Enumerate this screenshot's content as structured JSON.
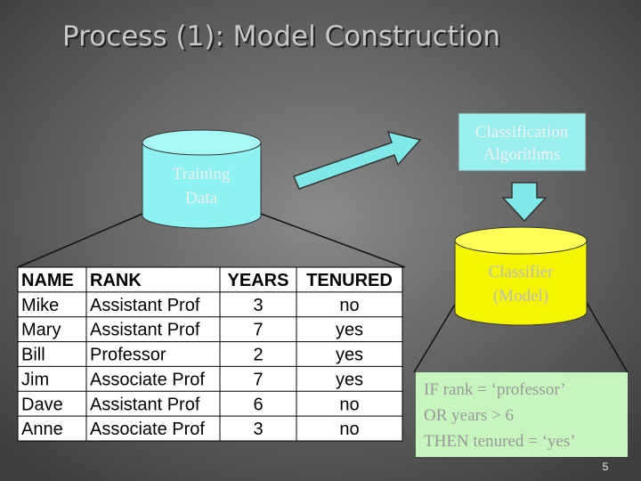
{
  "title": "Process (1): Model Construction",
  "training_data": {
    "lines": [
      "Training",
      "Data"
    ]
  },
  "algorithms": {
    "lines": [
      "Classification",
      "Algorithms"
    ]
  },
  "classifier": {
    "lines": [
      "Classifier",
      "(Model)"
    ]
  },
  "rule": {
    "lines": [
      "IF rank = ‘professor’",
      "OR years > 6",
      "THEN tenured = ‘yes’"
    ]
  },
  "table": {
    "header": [
      "NAME",
      "RANK",
      "YEARS",
      "TENURED"
    ],
    "rows": [
      [
        "Mike",
        "Assistant Prof",
        "3",
        "no"
      ],
      [
        "Mary",
        "Assistant Prof",
        "7",
        "yes"
      ],
      [
        "Bill",
        "Professor",
        "2",
        "yes"
      ],
      [
        "Jim",
        "Associate Prof",
        "7",
        "yes"
      ],
      [
        "Dave",
        "Assistant Prof",
        "6",
        "no"
      ],
      [
        "Anne",
        "Associate Prof",
        "3",
        "no"
      ]
    ]
  },
  "page_number": "5"
}
